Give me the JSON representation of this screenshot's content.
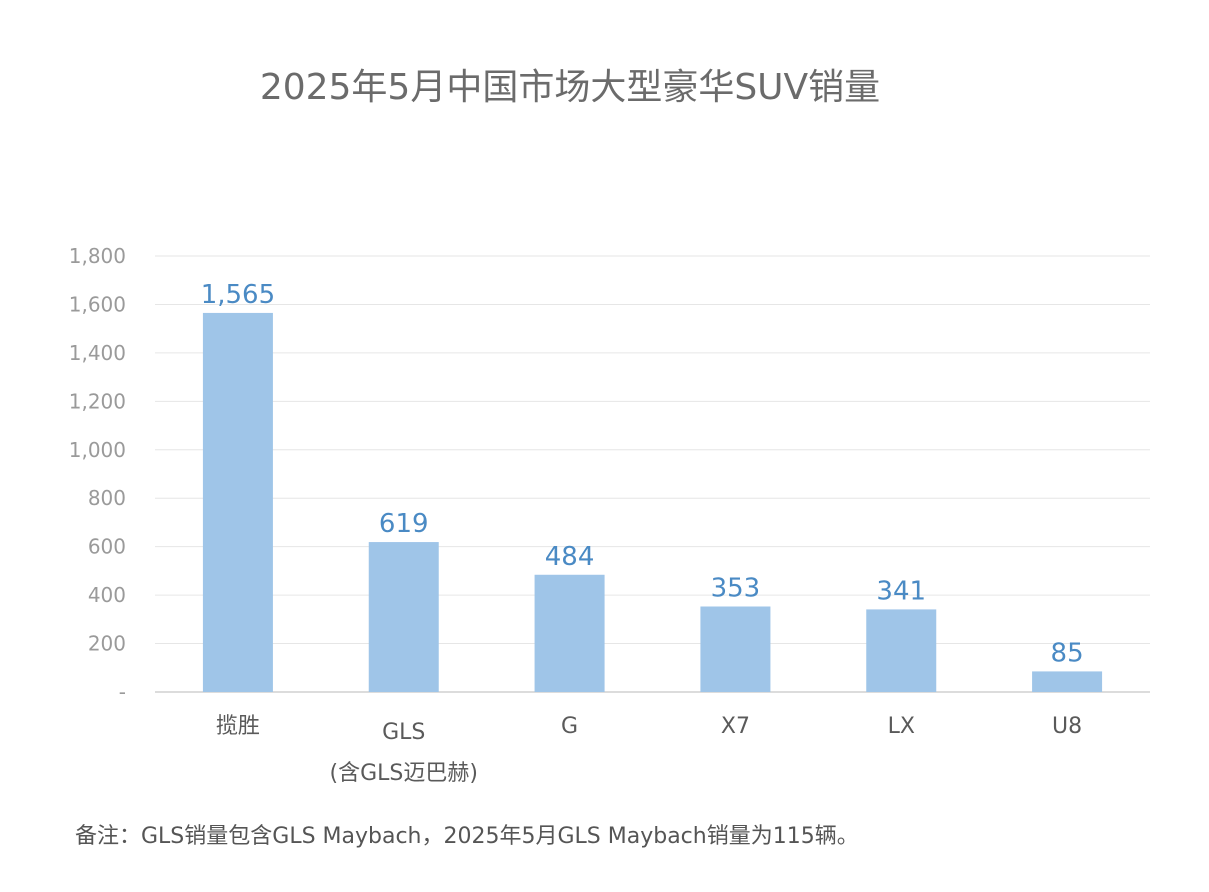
{
  "chart_data": {
    "type": "bar",
    "title": "2025年5月中国市场大型豪华SUV销量",
    "categories": [
      {
        "line1": "揽胜",
        "line2": ""
      },
      {
        "line1": "GLS",
        "line2": "(含GLS迈巴赫)"
      },
      {
        "line1": "G",
        "line2": ""
      },
      {
        "line1": "X7",
        "line2": ""
      },
      {
        "line1": "LX",
        "line2": ""
      },
      {
        "line1": "U8",
        "line2": ""
      }
    ],
    "values": [
      1565,
      619,
      484,
      353,
      341,
      85
    ],
    "data_labels": [
      "1,565",
      "619",
      "484",
      "353",
      "341",
      "85"
    ],
    "ylim": [
      0,
      1800
    ],
    "yticks": [
      {
        "value": 0,
        "label": "-"
      },
      {
        "value": 200,
        "label": "200"
      },
      {
        "value": 400,
        "label": "400"
      },
      {
        "value": 600,
        "label": "600"
      },
      {
        "value": 800,
        "label": "800"
      },
      {
        "value": 1000,
        "label": "1,000"
      },
      {
        "value": 1200,
        "label": "1,200"
      },
      {
        "value": 1400,
        "label": "1,400"
      },
      {
        "value": 1600,
        "label": "1,600"
      },
      {
        "value": 1800,
        "label": "1,800"
      }
    ],
    "xlabel": "",
    "ylabel": "",
    "grid": true,
    "legend": "none",
    "colors": {
      "bar": "#9fc5e8",
      "data_label": "#4a8ac4",
      "tick_label": "#9a9a9a",
      "category_label": "#5a5a5a",
      "grid": "#e6e6e6",
      "axis": "#d0d0d0"
    }
  },
  "note": "备注：GLS销量包含GLS Maybach，2025年5月GLS Maybach销量为115辆。"
}
